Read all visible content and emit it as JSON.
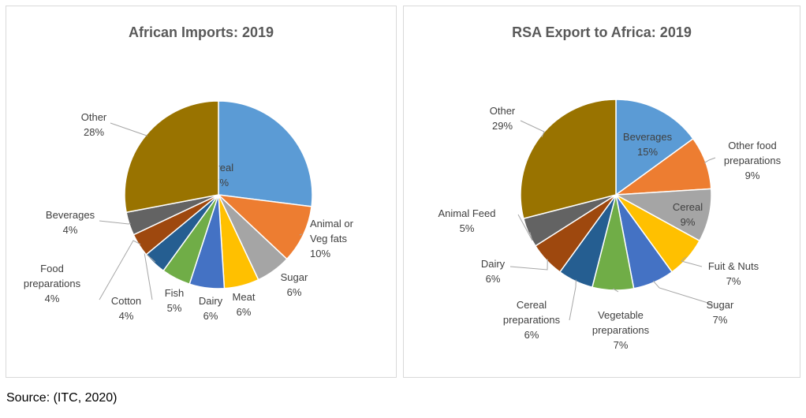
{
  "chart_data": [
    {
      "type": "pie",
      "title": "African Imports: 2019",
      "slices": [
        {
          "label": "Cereal",
          "value": 27,
          "color": "#5B9BD5"
        },
        {
          "label": "Animal or Veg fats",
          "value": 10,
          "color": "#ED7D31"
        },
        {
          "label": "Sugar",
          "value": 6,
          "color": "#A5A5A5"
        },
        {
          "label": "Meat",
          "value": 6,
          "color": "#FFC000"
        },
        {
          "label": "Dairy",
          "value": 6,
          "color": "#4472C4"
        },
        {
          "label": "Fish",
          "value": 5,
          "color": "#70AD47"
        },
        {
          "label": "Cotton",
          "value": 4,
          "color": "#255E91"
        },
        {
          "label": "Food preparations",
          "value": 4,
          "color": "#9E480E"
        },
        {
          "label": "Beverages",
          "value": 4,
          "color": "#636363"
        },
        {
          "label": "Other",
          "value": 28,
          "color": "#997300"
        }
      ]
    },
    {
      "type": "pie",
      "title": "RSA Export to Africa: 2019",
      "slices": [
        {
          "label": "Beverages",
          "value": 15,
          "color": "#5B9BD5"
        },
        {
          "label": "Other food preparations",
          "value": 9,
          "color": "#ED7D31"
        },
        {
          "label": "Cereal",
          "value": 9,
          "color": "#A5A5A5"
        },
        {
          "label": "Fuit & Nuts",
          "value": 7,
          "color": "#FFC000"
        },
        {
          "label": "Sugar",
          "value": 7,
          "color": "#4472C4"
        },
        {
          "label": "Vegetable preparations",
          "value": 7,
          "color": "#70AD47"
        },
        {
          "label": "Cereal preparations",
          "value": 6,
          "color": "#255E91"
        },
        {
          "label": "Dairy",
          "value": 6,
          "color": "#9E480E"
        },
        {
          "label": "Animal Feed",
          "value": 5,
          "color": "#636363"
        },
        {
          "label": "Other",
          "value": 29,
          "color": "#997300"
        }
      ]
    }
  ],
  "source": "Source: (ITC, 2020)"
}
